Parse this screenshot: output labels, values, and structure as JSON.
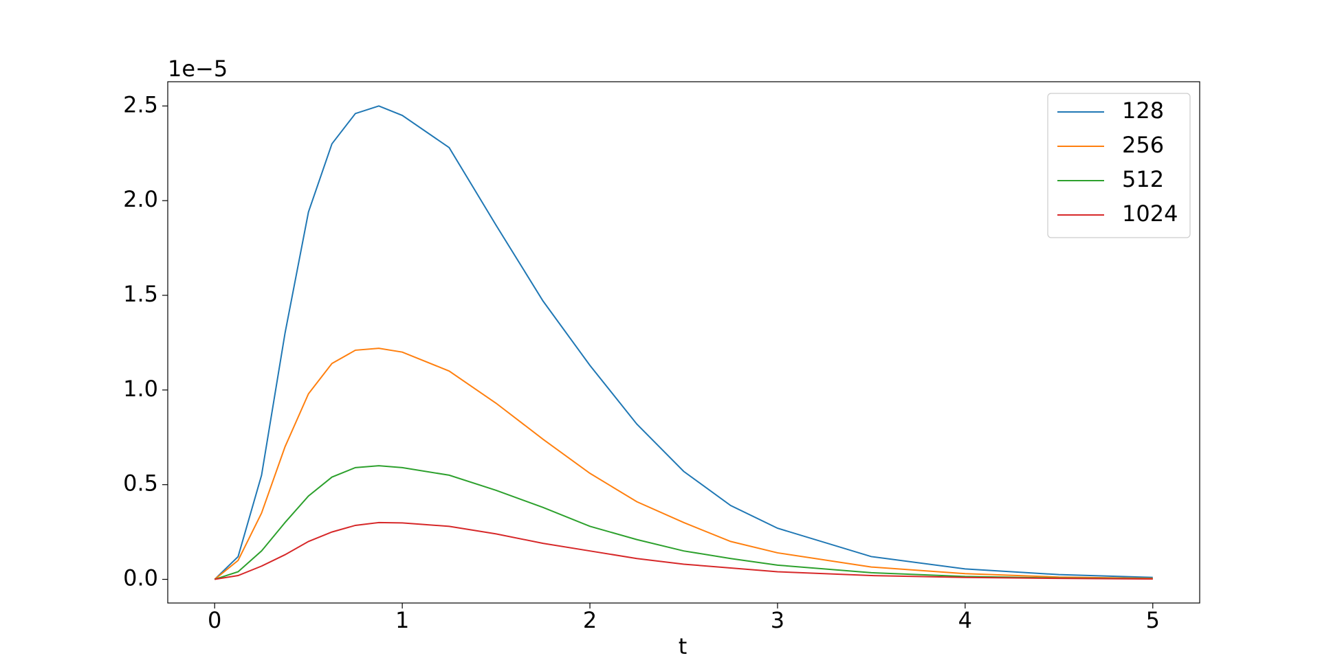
{
  "chart_data": {
    "type": "line",
    "x_label": "t",
    "y_offset_label": "1e−5",
    "x": [
      0,
      0.125,
      0.25,
      0.375,
      0.5,
      0.625,
      0.75,
      0.875,
      1,
      1.25,
      1.5,
      1.75,
      2,
      2.25,
      2.5,
      2.75,
      3,
      3.5,
      4,
      4.5,
      5
    ],
    "series": [
      {
        "name": "128",
        "color": "#1f77b4",
        "values": [
          0,
          0.12,
          0.55,
          1.3,
          1.94,
          2.3,
          2.46,
          2.5,
          2.45,
          2.28,
          1.87,
          1.47,
          1.13,
          0.82,
          0.57,
          0.39,
          0.27,
          0.12,
          0.055,
          0.025,
          0.01
        ]
      },
      {
        "name": "256",
        "color": "#ff7f0e",
        "values": [
          0,
          0.1,
          0.35,
          0.7,
          0.98,
          1.14,
          1.21,
          1.22,
          1.2,
          1.1,
          0.93,
          0.74,
          0.56,
          0.41,
          0.3,
          0.2,
          0.14,
          0.065,
          0.03,
          0.012,
          0.005
        ]
      },
      {
        "name": "512",
        "color": "#2ca02c",
        "values": [
          0,
          0.04,
          0.15,
          0.3,
          0.44,
          0.54,
          0.59,
          0.6,
          0.59,
          0.55,
          0.47,
          0.38,
          0.28,
          0.21,
          0.15,
          0.11,
          0.075,
          0.035,
          0.015,
          0.007,
          0.003
        ]
      },
      {
        "name": "1024",
        "color": "#d62728",
        "values": [
          0,
          0.02,
          0.07,
          0.13,
          0.2,
          0.25,
          0.285,
          0.3,
          0.298,
          0.28,
          0.24,
          0.19,
          0.15,
          0.11,
          0.08,
          0.06,
          0.04,
          0.02,
          0.01,
          0.005,
          0.002
        ]
      }
    ],
    "xlim": [
      -0.25,
      5.25
    ],
    "xticks": [
      0,
      1,
      2,
      3,
      4,
      5
    ],
    "ylim": [
      -0.125,
      2.628
    ],
    "yticks": [
      {
        "value": 0,
        "label": "0.0"
      },
      0.5,
      {
        "value": 1,
        "label": "1.0"
      },
      1.5,
      {
        "value": 2,
        "label": "2.0"
      },
      2.5
    ],
    "legend": "upper right"
  }
}
